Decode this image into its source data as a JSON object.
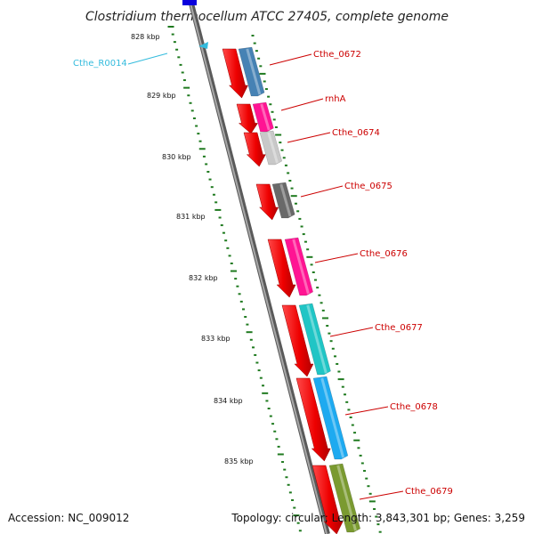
{
  "title": "Clostridium thermocellum ATCC 27405, complete genome",
  "accession_text": "Accession: NC_009012",
  "topology_text": "Topology: circular; Length: 3,843,301 bp; Genes: 3,259",
  "colors": {
    "backbone": "#8a8a8a",
    "tick": "#1f7a1f",
    "gene_label": "#cc0000",
    "rna_label": "#33bbdd"
  },
  "kbp_labels": [
    "828 kbp",
    "829 kbp",
    "830 kbp",
    "831 kbp",
    "832 kbp",
    "833 kbp",
    "834 kbp",
    "835 kbp"
  ],
  "genes": [
    {
      "label": "Cthe_0672",
      "color": "#4682b4"
    },
    {
      "label": "rnhA",
      "color": "#ff1493"
    },
    {
      "label": "Cthe_0674",
      "color": "#c8c8c8"
    },
    {
      "label": "Cthe_0675",
      "color": "#696969"
    },
    {
      "label": "Cthe_0676",
      "color": "#ff1493"
    },
    {
      "label": "Cthe_0677",
      "color": "#20c5c5"
    },
    {
      "label": "Cthe_0678",
      "color": "#1eaaf0"
    },
    {
      "label": "Cthe_0679",
      "color": "#7a9a30"
    }
  ],
  "rna_feature": {
    "label": "Cthe_R0014"
  }
}
